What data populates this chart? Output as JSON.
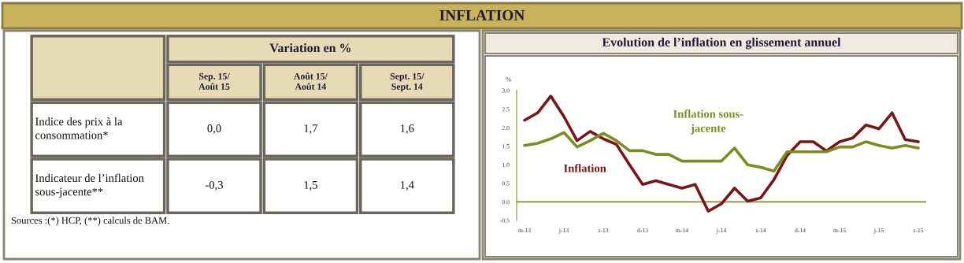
{
  "chart_data": [
    {
      "type": "other",
      "title": "INFLATION"
    },
    {
      "type": "other",
      "title": "Variation en %",
      "categories": [
        "Sep. 15/\nAoût 15",
        "Août 15/\nAoût 14",
        "Sept. 15/\nSept. 14"
      ],
      "y_categories": [
        "Indice des prix à la\nconsommation*",
        "Indicateur de l’inflation\nsous-jacente**"
      ],
      "cell_labels": [
        [
          "0,0",
          "1,7",
          "1,6"
        ],
        [
          "-0,3",
          "1,5",
          "1,4"
        ]
      ],
      "annotations": [
        "Sources :(*) HCP, (**) calculs de BAM."
      ]
    },
    {
      "type": "line",
      "title": "Evolution de l’inflation en glissement annuel",
      "ylabel": "%",
      "categories": [
        "m-13",
        null,
        null,
        "j-13",
        null,
        null,
        "s-13",
        null,
        null,
        "d-13",
        null,
        null,
        "m-14",
        null,
        null,
        "j-14",
        null,
        null,
        "s-14",
        null,
        null,
        "d-14",
        null,
        null,
        "m-15",
        null,
        null,
        "j-15",
        null,
        null,
        "s-15"
      ],
      "series": [
        {
          "name": "Inflation",
          "color": "#7a1616",
          "values": [
            2.2,
            2.4,
            2.85,
            2.3,
            1.65,
            1.9,
            1.7,
            1.55,
            1.0,
            0.47,
            0.57,
            0.47,
            0.37,
            0.47,
            -0.25,
            -0.05,
            0.37,
            0.02,
            0.11,
            0.6,
            1.25,
            1.62,
            1.62,
            1.37,
            1.62,
            1.72,
            2.07,
            1.97,
            2.4,
            1.68,
            1.62
          ]
        },
        {
          "name": "Inflation sous-\njacente",
          "color": "#7f8a1f",
          "values": [
            1.52,
            1.58,
            1.7,
            1.87,
            1.48,
            1.65,
            1.85,
            1.65,
            1.38,
            1.38,
            1.28,
            1.28,
            1.1,
            1.1,
            1.1,
            1.1,
            1.45,
            1.0,
            0.93,
            0.83,
            1.35,
            1.35,
            1.35,
            1.35,
            1.48,
            1.48,
            1.62,
            1.52,
            1.45,
            1.52,
            1.45
          ]
        }
      ],
      "ylim": [
        -0.5,
        3.0
      ],
      "yticks": [
        {
          "value": -0.5,
          "label": "-0.5"
        },
        {
          "value": 0,
          "label": "0.0"
        },
        {
          "value": 0.5,
          "label": "0.5"
        },
        {
          "value": 1,
          "label": "1.0"
        },
        {
          "value": 1.5,
          "label": "1.5"
        },
        {
          "value": 2,
          "label": "2.0"
        },
        {
          "value": 2.5,
          "label": "2.5"
        },
        {
          "value": 3,
          "label": "3.0"
        }
      ],
      "ref_lines": [
        {
          "axis": "y",
          "value": 0,
          "color": "#8a8a30"
        }
      ],
      "grid": false,
      "legend": false,
      "marker": "none",
      "line_style": "solid"
    }
  ]
}
